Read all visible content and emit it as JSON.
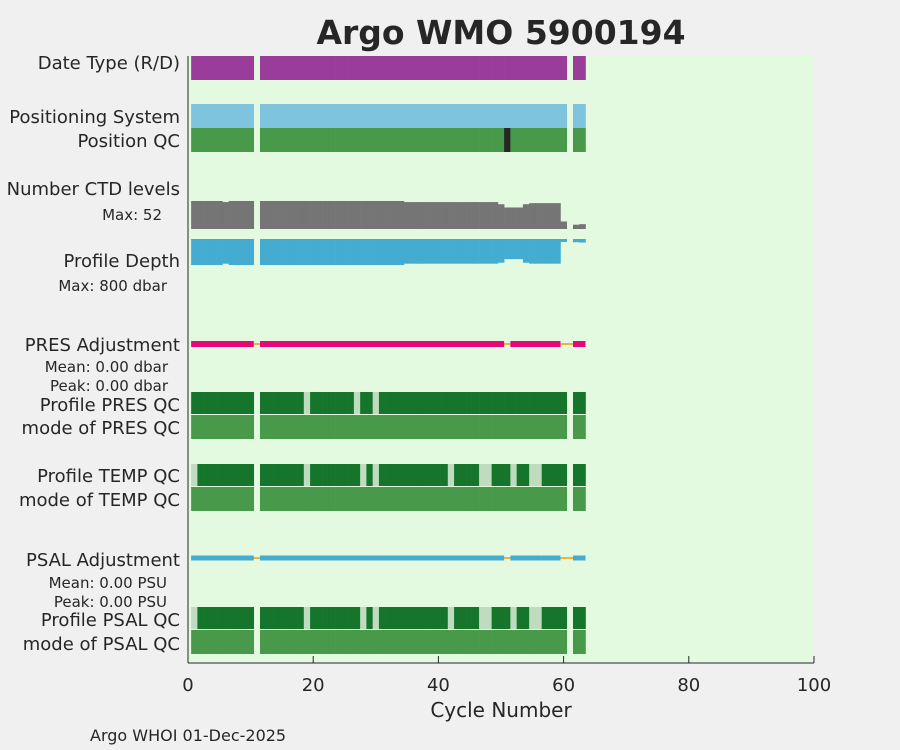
{
  "chart_data": {
    "type": "bar",
    "title": "Argo WMO 5900194",
    "xlabel": "Cycle Number",
    "ylabel": "",
    "xlim": [
      0,
      100
    ],
    "x_ticks": [
      "0",
      "20",
      "40",
      "60",
      "80",
      "100"
    ],
    "footer": "Argo WHOI 01-Dec-2025",
    "missing_cycles": [
      11,
      61
    ],
    "last_cycle": 63,
    "rows": {
      "date_type": {
        "label": "Date Type (R/D)"
      },
      "positioning": {
        "label": "Positioning System"
      },
      "position_qc": {
        "label": "Position QC",
        "bad_cycles": [
          51
        ]
      },
      "ctd_levels": {
        "label": "Number CTD levels",
        "max_text": "Max: 52",
        "max": 52,
        "values": [
          52,
          52,
          52,
          52,
          52,
          50,
          52,
          52,
          52,
          52,
          0,
          52,
          52,
          52,
          52,
          52,
          52,
          52,
          52,
          52,
          52,
          52,
          52,
          52,
          52,
          52,
          52,
          52,
          52,
          52,
          52,
          52,
          52,
          52,
          50,
          50,
          50,
          50,
          50,
          50,
          50,
          50,
          50,
          50,
          50,
          50,
          50,
          50,
          50,
          46,
          40,
          40,
          40,
          46,
          48,
          48,
          48,
          48,
          48,
          14,
          0,
          8,
          9
        ]
      },
      "profile_depth": {
        "label": "Profile Depth",
        "max_text": "Max:  800 dbar",
        "max_dbar": 800,
        "values": [
          800,
          800,
          800,
          800,
          800,
          760,
          800,
          800,
          800,
          800,
          0,
          800,
          800,
          800,
          800,
          800,
          800,
          800,
          800,
          800,
          800,
          800,
          800,
          800,
          800,
          800,
          800,
          800,
          800,
          800,
          800,
          800,
          800,
          800,
          760,
          760,
          760,
          760,
          760,
          760,
          760,
          760,
          760,
          760,
          760,
          760,
          760,
          760,
          760,
          730,
          620,
          620,
          620,
          730,
          760,
          760,
          760,
          760,
          760,
          80,
          0,
          100,
          110
        ]
      },
      "pres_adjustment": {
        "label": "PRES Adjustment",
        "mean_text": "Mean: 0.00 dbar",
        "peak_text": "Peak: 0.00 dbar",
        "ranges": [
          [
            1,
            10
          ],
          [
            12,
            50
          ],
          [
            52,
            59
          ],
          [
            62,
            63
          ]
        ]
      },
      "profile_pres_qc": {
        "label": "Profile PRES QC",
        "partial_cycles": [
          19,
          27,
          30
        ]
      },
      "mode_pres_qc": {
        "label": "mode of PRES QC"
      },
      "profile_temp_qc": {
        "label": "Profile TEMP QC",
        "partial_cycles": [
          1,
          19,
          28,
          30,
          42,
          47,
          48,
          52,
          55,
          56
        ]
      },
      "mode_temp_qc": {
        "label": "mode of TEMP QC"
      },
      "psal_adjustment": {
        "label": "PSAL Adjustment",
        "mean_text": "Mean: 0.00 PSU",
        "peak_text": "Peak: 0.00 PSU",
        "ranges": [
          [
            1,
            10
          ],
          [
            12,
            30
          ],
          [
            31,
            50
          ],
          [
            52,
            56
          ],
          [
            57,
            59
          ],
          [
            62,
            63
          ]
        ]
      },
      "profile_psal_qc": {
        "label": "Profile PSAL QC",
        "partial_cycles": [
          1,
          19,
          28,
          30,
          42,
          47,
          48,
          52,
          55,
          56
        ]
      },
      "mode_psal_qc": {
        "label": "mode of PSAL QC"
      }
    },
    "colors": {
      "background": "#f0f0f0",
      "plot_bg": "#e3f9e0",
      "title": "#0083b8",
      "date_type": "#9a3c99",
      "positioning": "#7ec4df",
      "qc_good": "#48994a",
      "qc_good_dark": "#15752b",
      "qc_partial": "#bfdcbf",
      "qc_bad": "#262626",
      "ctd": "#757575",
      "depth": "#44acd1",
      "depth_text": "#1e97c3",
      "pres": "#e6087a",
      "psal": "#44acd1",
      "psal_text": "#1e97c3",
      "adj_link": "#efb43b",
      "axis": "#262626"
    }
  }
}
